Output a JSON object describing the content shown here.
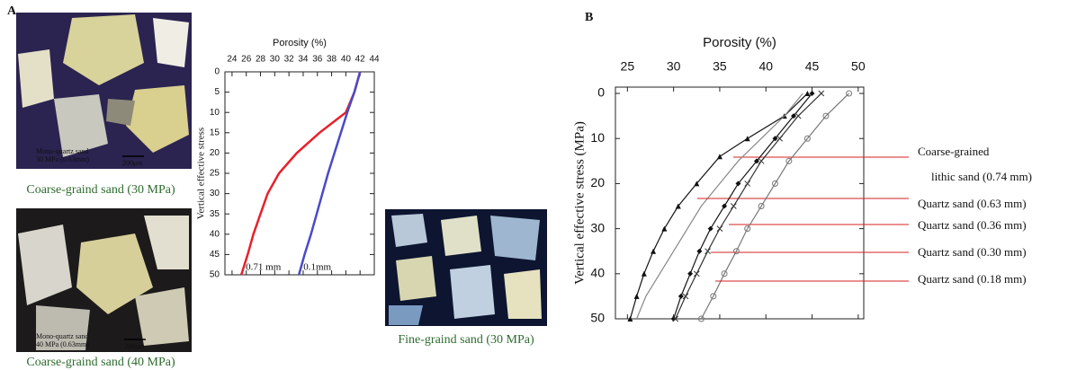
{
  "panel_labels": [
    "A",
    "B"
  ],
  "images": [
    {
      "caption": "Coarse-graind sand (30 MPa)",
      "inset_text": [
        "Mono-quartz sand",
        "30 MPa (0.63mm)"
      ],
      "scale": "200μm"
    },
    {
      "caption": "Coarse-graind sand (40 MPa)",
      "inset_text": [
        "Mono-quartz sand",
        "40 MPa (0.63mm)"
      ],
      "scale": "200μm"
    },
    {
      "caption": "Fine-graind sand (30 MPa)"
    }
  ],
  "chart_data": [
    {
      "type": "line",
      "title": "Porosity (%)",
      "y_label": "Vertical effective stress",
      "x_axis": "top",
      "y_inverted": true,
      "xlim": [
        23,
        44
      ],
      "xticks": [
        24,
        26,
        28,
        30,
        32,
        34,
        36,
        38,
        40,
        42,
        44
      ],
      "ylim": [
        0,
        50
      ],
      "yticks": [
        0,
        5,
        10,
        15,
        20,
        25,
        30,
        35,
        40,
        45,
        50
      ],
      "series": [
        {
          "name": "0.71 mm",
          "color": "#e8202a",
          "x": [
            42,
            41.2,
            40,
            36.3,
            33.1,
            30.6,
            29,
            28,
            27,
            26.2,
            25.3
          ],
          "values": [
            0,
            5,
            10,
            15,
            20,
            25,
            30,
            35,
            40,
            45,
            50
          ]
        },
        {
          "name": "0.1mm",
          "color": "#4a4ac8",
          "x": [
            42,
            41.2,
            40.2,
            39.3,
            38.4,
            37.5,
            36.7,
            35.9,
            35.1,
            34.2,
            33.4
          ],
          "values": [
            0,
            5,
            10,
            15,
            20,
            25,
            30,
            35,
            40,
            45,
            50
          ]
        }
      ]
    },
    {
      "type": "line",
      "title": "Porosity (%)",
      "y_label": "Vertical effective stress (MPa)",
      "x_axis": "top",
      "y_inverted": true,
      "xlim": [
        23.7,
        50.6
      ],
      "xticks": [
        25,
        30,
        35,
        40,
        45,
        50
      ],
      "ylim": [
        -1.4,
        50
      ],
      "yticks": [
        0,
        10,
        20,
        30,
        40,
        50
      ],
      "series": [
        {
          "name": [
            "Coarse-grained",
            "lithic sand (0.74 mm)"
          ],
          "color": "#111111",
          "marker": "triangle",
          "x": [
            44.5,
            42,
            38,
            35,
            32.5,
            30.5,
            29,
            27.8,
            26.8,
            26,
            25.3
          ],
          "values": [
            0,
            5,
            10,
            14,
            20,
            25,
            30,
            35,
            40,
            45,
            50
          ]
        },
        {
          "name": "Quartz sand (0.63 mm)",
          "color": "#888888",
          "marker": "none",
          "x": [
            44,
            42,
            39.5,
            37,
            35,
            33,
            31.5,
            30,
            28.5,
            27,
            26
          ],
          "values": [
            0,
            5,
            10,
            15,
            20,
            25,
            30,
            35,
            40,
            45,
            50
          ]
        },
        {
          "name": "Quartz sand (0.36 mm)",
          "color": "#111111",
          "marker": "diamond",
          "x": [
            45,
            43,
            41,
            39,
            37,
            35.5,
            34,
            32.8,
            31.8,
            30.8,
            30
          ],
          "values": [
            0,
            5,
            10,
            15,
            20,
            25,
            30,
            35,
            40,
            45,
            50
          ]
        },
        {
          "name": "Quartz sand (0.30 mm)",
          "color": "#333333",
          "marker": "cross",
          "x": [
            46,
            43.5,
            41.5,
            39.5,
            38,
            36.5,
            35,
            33.7,
            32.5,
            31.3,
            30.2
          ],
          "values": [
            0,
            5,
            10,
            15,
            20,
            25,
            30,
            35,
            40,
            45,
            50
          ]
        },
        {
          "name": "Quartz sand (0.18 mm)",
          "color": "#777777",
          "marker": "circle",
          "x": [
            49,
            46.5,
            44.5,
            42.5,
            41,
            39.5,
            38,
            36.8,
            35.5,
            34.3,
            33
          ],
          "values": [
            0,
            5,
            10,
            15,
            20,
            25,
            30,
            35,
            40,
            45,
            50
          ]
        }
      ]
    }
  ]
}
